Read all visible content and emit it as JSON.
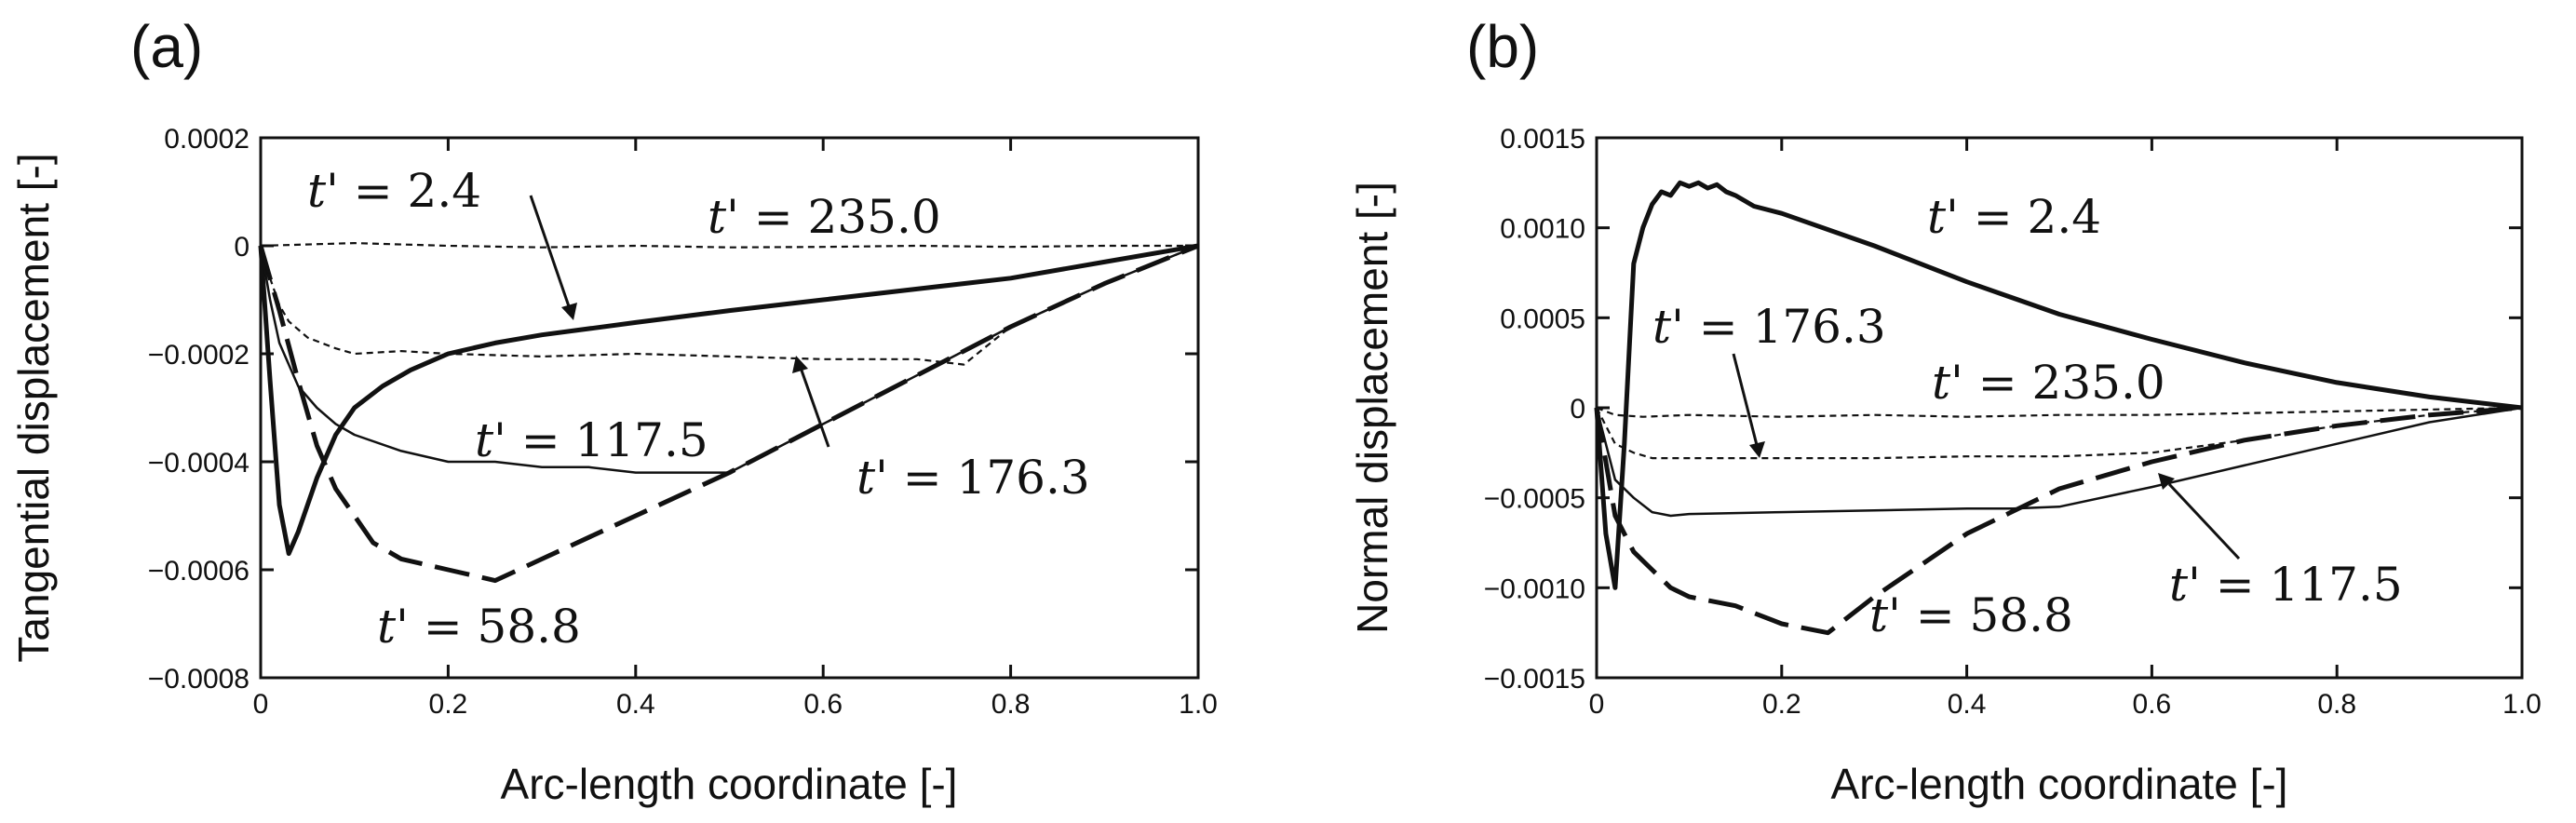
{
  "chart_data": [
    {
      "type": "line",
      "panel_label": "(a)",
      "xlabel": "Arc-length coordinate [-]",
      "ylabel": "Tangential displacement [-]",
      "xlim": [
        0,
        1.0
      ],
      "ylim": [
        -0.0008,
        0.0002
      ],
      "xticks": [
        0,
        0.2,
        0.4,
        0.6,
        0.8,
        1.0
      ],
      "xtick_labels": [
        "0",
        "0.2",
        "0.4",
        "0.6",
        "0.8",
        "1.0"
      ],
      "yticks": [
        -0.0008,
        -0.0006,
        -0.0004,
        -0.0002,
        0,
        0.0002
      ],
      "ytick_labels": [
        "−0.0008",
        "−0.0006",
        "−0.0004",
        "−0.0002",
        "0",
        "0.0002"
      ],
      "series": [
        {
          "name": "t' = 2.4",
          "style": "thick-solid",
          "x": [
            0,
            0.01,
            0.02,
            0.03,
            0.04,
            0.06,
            0.08,
            0.1,
            0.13,
            0.16,
            0.2,
            0.25,
            0.3,
            0.4,
            0.5,
            0.6,
            0.7,
            0.8,
            0.9,
            1.0
          ],
          "values": [
            0,
            -0.00025,
            -0.00048,
            -0.00057,
            -0.00053,
            -0.00043,
            -0.00035,
            -0.0003,
            -0.00026,
            -0.00023,
            -0.0002,
            -0.00018,
            -0.000165,
            -0.000142,
            -0.00012,
            -0.0001,
            -8e-05,
            -6e-05,
            -3e-05,
            0
          ]
        },
        {
          "name": "t' = 58.8",
          "style": "long-dash",
          "x": [
            0,
            0.02,
            0.04,
            0.06,
            0.08,
            0.1,
            0.12,
            0.15,
            0.2,
            0.25,
            0.3,
            0.4,
            0.5,
            0.6,
            0.7,
            0.8,
            0.9,
            1.0
          ],
          "values": [
            0,
            -0.00012,
            -0.00025,
            -0.00037,
            -0.00045,
            -0.0005,
            -0.00055,
            -0.00058,
            -0.0006,
            -0.00062,
            -0.00058,
            -0.0005,
            -0.00042,
            -0.00033,
            -0.00024,
            -0.00015,
            -7e-05,
            0
          ]
        },
        {
          "name": "t' = 117.5",
          "style": "thin-solid",
          "x": [
            0,
            0.01,
            0.02,
            0.04,
            0.06,
            0.08,
            0.1,
            0.15,
            0.2,
            0.25,
            0.3,
            0.35,
            0.4,
            0.45,
            0.5,
            0.6,
            0.7,
            0.8,
            0.9,
            1.0
          ],
          "values": [
            0,
            -0.0001,
            -0.00018,
            -0.00026,
            -0.0003,
            -0.00033,
            -0.00035,
            -0.00038,
            -0.0004,
            -0.0004,
            -0.00041,
            -0.00041,
            -0.00042,
            -0.00042,
            -0.00042,
            -0.00033,
            -0.00024,
            -0.00015,
            -7e-05,
            0
          ]
        },
        {
          "name": "t' = 176.3",
          "style": "short-dash",
          "x": [
            0,
            0.01,
            0.02,
            0.03,
            0.05,
            0.08,
            0.1,
            0.15,
            0.2,
            0.3,
            0.4,
            0.5,
            0.6,
            0.7,
            0.75,
            0.8,
            0.9,
            1.0
          ],
          "values": [
            0,
            -6e-05,
            -0.00011,
            -0.00014,
            -0.00017,
            -0.00019,
            -0.0002,
            -0.000195,
            -0.0002,
            -0.000205,
            -0.0002,
            -0.000205,
            -0.00021,
            -0.00021,
            -0.00022,
            -0.00015,
            -7e-05,
            0
          ]
        },
        {
          "name": "t' = 235.0",
          "style": "short-dash",
          "x": [
            0,
            0.1,
            0.2,
            0.3,
            0.4,
            0.5,
            0.6,
            0.7,
            0.8,
            0.9,
            1.0
          ],
          "values": [
            0,
            5e-06,
            0,
            -3e-06,
            0,
            -3e-06,
            -2e-06,
            0,
            -2e-06,
            0,
            0
          ]
        }
      ],
      "annotations": [
        "t' = 2.4",
        "t' = 235.0",
        "t' = 117.5",
        "t' = 176.3",
        "t' = 58.8"
      ]
    },
    {
      "type": "line",
      "panel_label": "(b)",
      "xlabel": "Arc-length coordinate [-]",
      "ylabel": "Normal displacement [-]",
      "xlim": [
        0,
        1.0
      ],
      "ylim": [
        -0.0015,
        0.0015
      ],
      "xticks": [
        0,
        0.2,
        0.4,
        0.6,
        0.8,
        1.0
      ],
      "xtick_labels": [
        "0",
        "0.2",
        "0.4",
        "0.6",
        "0.8",
        "1.0"
      ],
      "yticks": [
        -0.0015,
        -0.001,
        -0.0005,
        0,
        0.0005,
        0.001,
        0.0015
      ],
      "ytick_labels": [
        "−0.0015",
        "−0.0010",
        "−0.0005",
        "0",
        "0.0005",
        "0.0010",
        "0.0015"
      ],
      "series": [
        {
          "name": "t' = 2.4",
          "style": "thick-solid",
          "x": [
            0,
            0.01,
            0.02,
            0.03,
            0.04,
            0.05,
            0.06,
            0.07,
            0.08,
            0.09,
            0.1,
            0.11,
            0.12,
            0.13,
            0.14,
            0.15,
            0.17,
            0.2,
            0.3,
            0.4,
            0.5,
            0.6,
            0.7,
            0.8,
            0.9,
            1.0
          ],
          "values": [
            0,
            -0.0007,
            -0.001,
            -0.0002,
            0.0008,
            0.001,
            0.00113,
            0.0012,
            0.00118,
            0.00125,
            0.00123,
            0.00125,
            0.00122,
            0.00124,
            0.0012,
            0.00118,
            0.00112,
            0.00108,
            0.0009,
            0.0007,
            0.00052,
            0.00038,
            0.00025,
            0.00014,
            6e-05,
            0
          ]
        },
        {
          "name": "t' = 58.8",
          "style": "long-dash",
          "x": [
            0,
            0.01,
            0.02,
            0.04,
            0.06,
            0.08,
            0.1,
            0.15,
            0.2,
            0.25,
            0.3,
            0.4,
            0.5,
            0.6,
            0.7,
            0.8,
            0.9,
            1.0
          ],
          "values": [
            0,
            -0.0003,
            -0.0006,
            -0.0008,
            -0.0009,
            -0.001,
            -0.00105,
            -0.0011,
            -0.0012,
            -0.00125,
            -0.00105,
            -0.0007,
            -0.00045,
            -0.0003,
            -0.00018,
            -0.0001,
            -4e-05,
            0
          ]
        },
        {
          "name": "t' = 117.5",
          "style": "thin-solid",
          "x": [
            0,
            0.01,
            0.02,
            0.04,
            0.06,
            0.08,
            0.1,
            0.2,
            0.3,
            0.4,
            0.45,
            0.5,
            0.6,
            0.7,
            0.8,
            0.9,
            1.0
          ],
          "values": [
            0,
            -0.0002,
            -0.0004,
            -0.0005,
            -0.00058,
            -0.0006,
            -0.00059,
            -0.00058,
            -0.00057,
            -0.00056,
            -0.00056,
            -0.00055,
            -0.00044,
            -0.00032,
            -0.0002,
            -8e-05,
            0
          ]
        },
        {
          "name": "t' = 176.3",
          "style": "short-dash",
          "x": [
            0,
            0.01,
            0.02,
            0.04,
            0.06,
            0.1,
            0.2,
            0.3,
            0.4,
            0.5,
            0.6,
            0.7,
            0.8,
            0.9,
            1.0
          ],
          "values": [
            0,
            -0.0001,
            -0.0002,
            -0.00025,
            -0.00028,
            -0.00028,
            -0.00028,
            -0.00028,
            -0.00027,
            -0.00027,
            -0.00025,
            -0.00018,
            -0.0001,
            -4e-05,
            0
          ]
        },
        {
          "name": "t' = 235.0",
          "style": "short-dash",
          "x": [
            0,
            0.01,
            0.02,
            0.05,
            0.1,
            0.2,
            0.3,
            0.4,
            0.5,
            0.6,
            0.7,
            0.8,
            0.9,
            1.0
          ],
          "values": [
            0,
            -2e-05,
            -4e-05,
            -5e-05,
            -4e-05,
            -5e-05,
            -4e-05,
            -5e-05,
            -4e-05,
            -4e-05,
            -3e-05,
            -2e-05,
            -1e-05,
            0
          ]
        }
      ],
      "annotations": [
        "t' = 2.4",
        "t' = 176.3",
        "t' = 235.0",
        "t' = 58.8",
        "t' = 117.5"
      ]
    }
  ]
}
